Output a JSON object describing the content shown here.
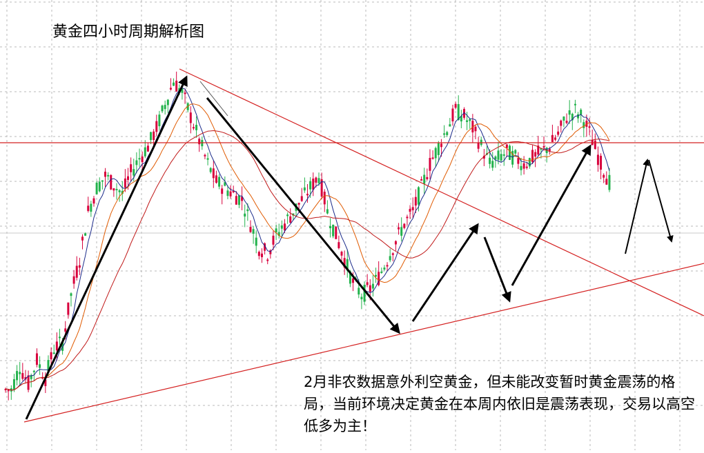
{
  "chart_data": {
    "type": "candlestick",
    "title": "黄金四小时周期解析图",
    "annotation": "2月非农数据意外利空黄金，但未能改变暂时黄金震荡的格局，当前环境决定黄金在本周内依旧是震荡表现，交易以高空低多为主！",
    "grid": true,
    "colors": {
      "up": "#d8003c",
      "down": "#22b24c",
      "trendline": "#d42020",
      "arrow": "#000000",
      "ma_fast": "#1a2a8a",
      "ma_mid": "#e05a00",
      "ma_slow": "#c01818"
    },
    "series": [
      {
        "values": [
          600,
          640,
          610,
          650,
          620,
          670,
          680,
          760,
          820,
          900,
          940,
          960,
          945,
          930,
          965,
          990,
          1010,
          1040,
          1080,
          1120,
          1100,
          1060,
          1020,
          980,
          950,
          940,
          930,
          920,
          880,
          840,
          830,
          860,
          880,
          900,
          920,
          940,
          960,
          900,
          860,
          820,
          780,
          760,
          770,
          790,
          820,
          850,
          880,
          900,
          940,
          980,
          1010,
          1040,
          1070,
          1060,
          1040,
          1010,
          980,
          990,
          1000,
          990,
          980,
          990,
          1000,
          1010,
          1030,
          1060,
          1070,
          1055,
          1020,
          980,
          950
        ]
      }
    ]
  }
}
